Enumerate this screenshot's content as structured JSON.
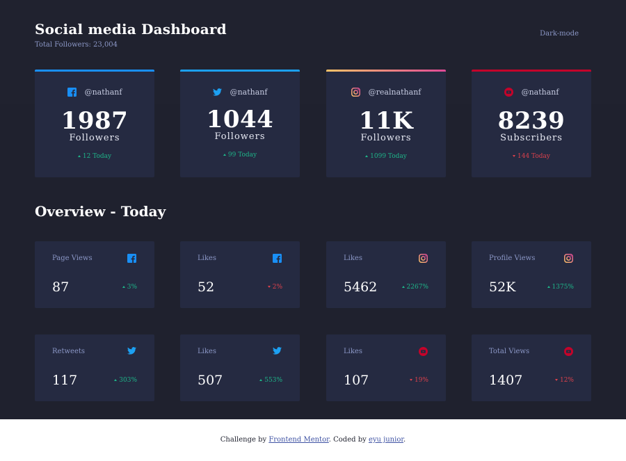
{
  "header": {
    "title": "Social media Dashboard",
    "subtitle": "Total Followers: 23,004",
    "mode_label": "Dark-mode"
  },
  "colors": {
    "background": "#1f212e",
    "card": "#252a41",
    "up": "#1eb589",
    "down": "#dc414c",
    "facebook": "#198ff5",
    "twitter": "#1ca0f2",
    "youtube": "#c4032a"
  },
  "follower_cards": [
    {
      "network": "facebook",
      "icon": "facebook-icon",
      "handle": "@nathanf",
      "count": "1987",
      "unit": "Followers",
      "trend": "up",
      "today": "12 Today"
    },
    {
      "network": "twitter",
      "icon": "twitter-icon",
      "handle": "@nathanf",
      "count": "1044",
      "unit": "Followers",
      "trend": "up",
      "today": "99 Today"
    },
    {
      "network": "instagram",
      "icon": "instagram-icon",
      "handle": "@realnathanf",
      "count": "11K",
      "unit": "Followers",
      "trend": "up",
      "today": "1099 Today"
    },
    {
      "network": "youtube",
      "icon": "youtube-icon",
      "handle": "@nathanf",
      "count": "8239",
      "unit": "Subscribers",
      "trend": "down",
      "today": "144 Today"
    }
  ],
  "overview": {
    "title": "Overview - Today",
    "cards": [
      {
        "label": "Page Views",
        "icon": "facebook-icon",
        "value": "87",
        "trend": "up",
        "percent": "3%"
      },
      {
        "label": "Likes",
        "icon": "facebook-icon",
        "value": "52",
        "trend": "down",
        "percent": "2%"
      },
      {
        "label": "Likes",
        "icon": "instagram-icon",
        "value": "5462",
        "trend": "up",
        "percent": "2267%"
      },
      {
        "label": "Profile Views",
        "icon": "instagram-icon",
        "value": "52K",
        "trend": "up",
        "percent": "1375%"
      },
      {
        "label": "Retweets",
        "icon": "twitter-icon",
        "value": "117",
        "trend": "up",
        "percent": "303%"
      },
      {
        "label": "Likes",
        "icon": "twitter-icon",
        "value": "507",
        "trend": "up",
        "percent": "553%"
      },
      {
        "label": "Likes",
        "icon": "youtube-icon",
        "value": "107",
        "trend": "down",
        "percent": "19%"
      },
      {
        "label": "Total Views",
        "icon": "youtube-icon",
        "value": "1407",
        "trend": "down",
        "percent": "12%"
      }
    ]
  },
  "footer": {
    "prefix": "Challenge by",
    "link1": "Frontend Mentor",
    "middle": ". Coded by",
    "link2": "eyu junior",
    "suffix": "."
  }
}
